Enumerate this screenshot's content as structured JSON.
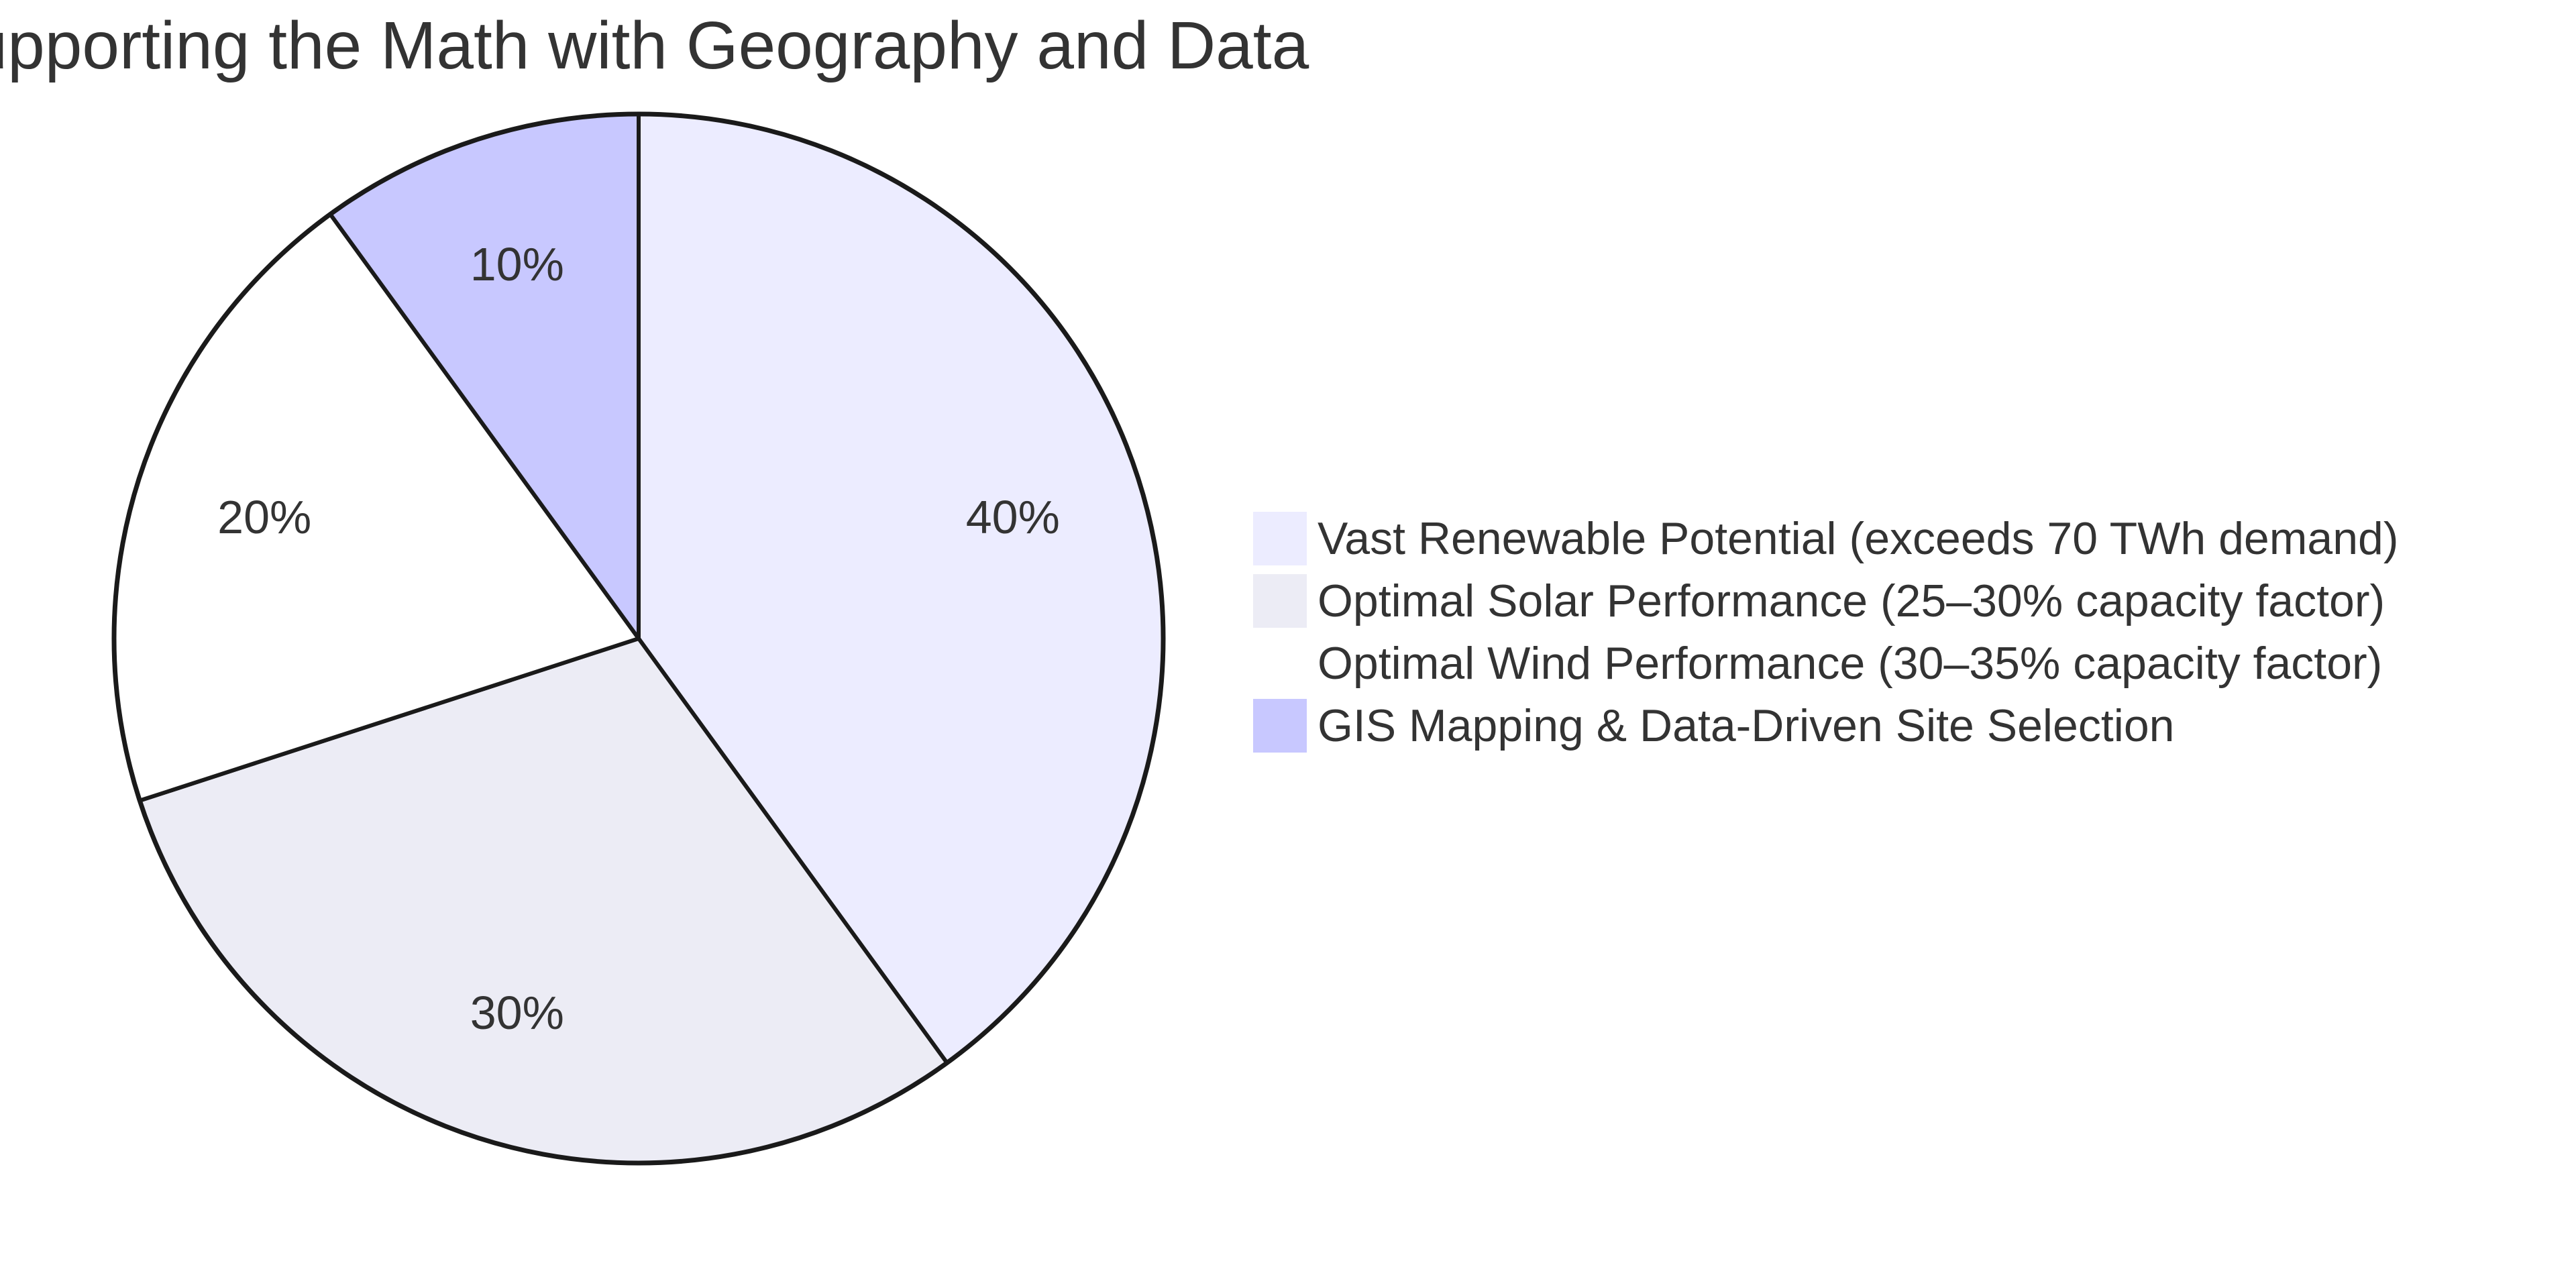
{
  "chart_data": {
    "type": "pie",
    "title": "Supporting the Math with Geography and Data",
    "series": [
      {
        "name": "Vast Renewable Potential (exceeds 70 TWh demand)",
        "value": 40,
        "label": "40%",
        "color": "#ECECFF"
      },
      {
        "name": "Optimal Solar Performance (25–30% capacity factor)",
        "value": 30,
        "label": "30%",
        "color": "#ECECF5"
      },
      {
        "name": "Optimal Wind Performance (30–35% capacity factor)",
        "value": 20,
        "label": "20%",
        "color": "#FFFFFF"
      },
      {
        "name": "GIS Mapping & Data-Driven Site Selection",
        "value": 10,
        "label": "10%",
        "color": "#C8C8FF"
      }
    ],
    "legend_position": "right",
    "stroke_color": "#1a1a1a"
  }
}
